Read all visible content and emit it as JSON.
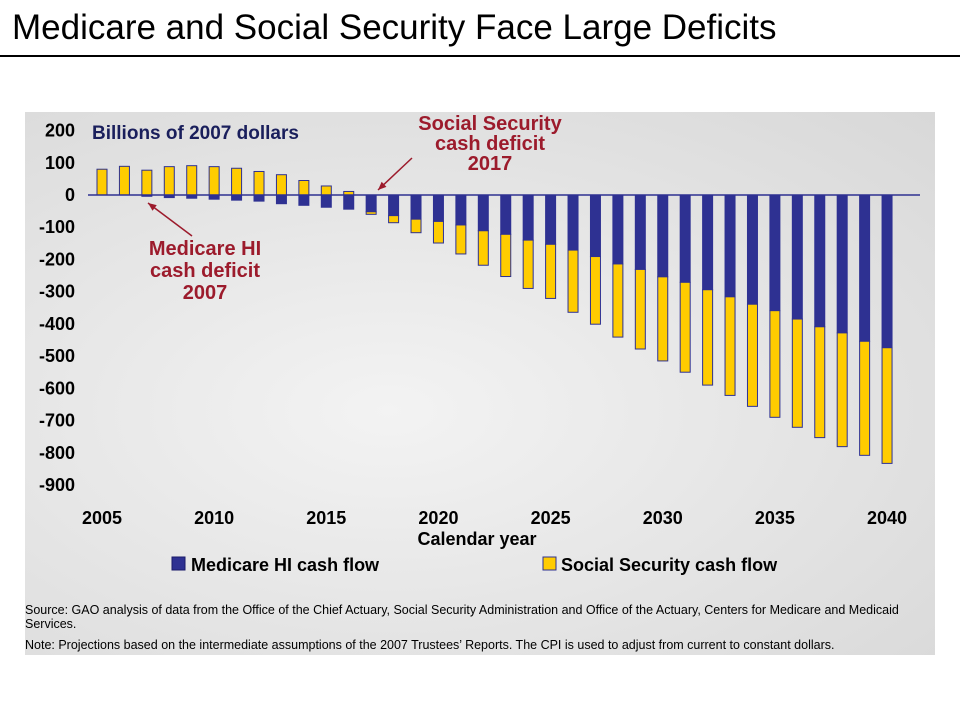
{
  "title": "Medicare and Social Security Face Large Deficits",
  "chart_data": {
    "type": "bar",
    "stacked": true,
    "ylabel": "Billions of 2007 dollars",
    "xlabel": "Calendar year",
    "ylim": [
      -900,
      200
    ],
    "yticks": [
      200,
      100,
      0,
      -100,
      -200,
      -300,
      -400,
      -500,
      -600,
      -700,
      -800,
      -900
    ],
    "ytick_labels": [
      "200",
      "100",
      "0",
      "-100",
      "-200",
      "-300",
      "-400",
      "-500",
      "-600",
      "-700",
      "-800",
      "-900"
    ],
    "xticks": [
      "2005",
      "2010",
      "2015",
      "2020",
      "2025",
      "2030",
      "2035",
      "2040"
    ],
    "categories": [
      2005,
      2006,
      2007,
      2008,
      2009,
      2010,
      2011,
      2012,
      2013,
      2014,
      2015,
      2016,
      2017,
      2018,
      2019,
      2020,
      2021,
      2022,
      2023,
      2024,
      2025,
      2026,
      2027,
      2028,
      2029,
      2030,
      2031,
      2032,
      2033,
      2034,
      2035,
      2036,
      2037,
      2038,
      2039,
      2040
    ],
    "series": [
      {
        "name": "Medicare HI cash flow",
        "color": "#2e3192",
        "values": [
          0,
          0,
          -4,
          -8,
          -10,
          -13,
          -16,
          -19,
          -27,
          -32,
          -38,
          -44,
          -52,
          -64,
          -75,
          -82,
          -93,
          -111,
          -122,
          -140,
          -153,
          -171,
          -191,
          -214,
          -231,
          -254,
          -271,
          -294,
          -316,
          -339,
          -359,
          -385,
          -409,
          -428,
          -454,
          -474
        ]
      },
      {
        "name": "Social Security cash flow",
        "color": "#ffcc00",
        "values": [
          80,
          89,
          77,
          88,
          91,
          88,
          83,
          73,
          63,
          45,
          28,
          11,
          -8,
          -22,
          -42,
          -67,
          -90,
          -107,
          -131,
          -150,
          -168,
          -193,
          -210,
          -227,
          -247,
          -261,
          -279,
          -296,
          -306,
          -317,
          -331,
          -336,
          -344,
          -353,
          -354,
          -359
        ]
      }
    ],
    "legend_position": "bottom",
    "annotations": [
      {
        "lines": [
          "Social Security",
          "cash deficit",
          "2017"
        ],
        "year": 2017
      },
      {
        "lines": [
          "Medicare HI",
          "cash deficit",
          "2007"
        ],
        "year": 2007
      }
    ],
    "annotation_color": "#9c1b2c"
  },
  "source": "Source:  GAO analysis of data from the Office of the Chief Actuary, Social Security Administration and Office of the Actuary, Centers for Medicare and Medicaid Services.",
  "note": "Note:  Projections based on the intermediate assumptions of the 2007 Trustees’ Reports. The CPI is used to adjust from current to constant dollars."
}
